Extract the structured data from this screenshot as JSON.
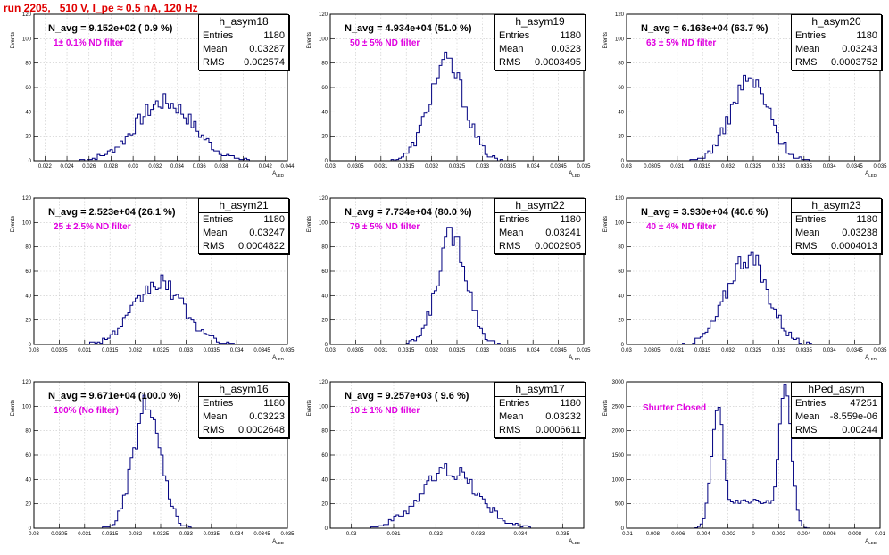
{
  "run_title": "run 2205,   510 V, I_pe ≈ 0.5 nA, 120 Hz",
  "chart_data": [
    {
      "type": "bar",
      "title": "h_asym18",
      "navg": "N_avg = 9.152e+02 ( 0.9 %)",
      "note": "1± 0.1% ND filter",
      "stats": {
        "Entries": "1180",
        "Mean": "0.03287",
        "RMS": "0.002574"
      },
      "xlabel": "A_LED",
      "ylabel": "Events",
      "xlim": [
        0.021,
        0.044
      ],
      "ylim": [
        0,
        120
      ],
      "xticks": [
        0.022,
        0.024,
        0.026,
        0.028,
        0.03,
        0.032,
        0.034,
        0.036,
        0.038,
        0.04,
        0.042,
        0.044
      ],
      "yticks": [
        0,
        20,
        40,
        60,
        80,
        100,
        120
      ],
      "peak": {
        "mean": 0.03287,
        "rms": 0.002574,
        "height": 48,
        "entries": 1180
      }
    },
    {
      "type": "bar",
      "title": "h_asym19",
      "navg": "N_avg = 4.934e+04 (51.0 %)",
      "note": "50 ± 5% ND filter",
      "stats": {
        "Entries": "1180",
        "Mean": "0.0323",
        "RMS": "0.0003495"
      },
      "xlabel": "A_LED",
      "ylabel": "Events",
      "xlim": [
        0.03,
        0.035
      ],
      "ylim": [
        0,
        120
      ],
      "xticks": [
        0.03,
        0.0305,
        0.031,
        0.0315,
        0.032,
        0.0325,
        0.033,
        0.0335,
        0.034,
        0.0345,
        0.035
      ],
      "yticks": [
        0,
        20,
        40,
        60,
        80,
        100,
        120
      ],
      "peak": {
        "mean": 0.0323,
        "rms": 0.0003495,
        "height": 80,
        "entries": 1180
      }
    },
    {
      "type": "bar",
      "title": "h_asym20",
      "navg": "N_avg = 6.163e+04 (63.7 %)",
      "note": "63 ± 5% ND filter",
      "stats": {
        "Entries": "1180",
        "Mean": "0.03243",
        "RMS": "0.0003752"
      },
      "xlabel": "A_LED",
      "ylabel": "Events",
      "xlim": [
        0.03,
        0.035
      ],
      "ylim": [
        0,
        120
      ],
      "xticks": [
        0.03,
        0.0305,
        0.031,
        0.0315,
        0.032,
        0.0325,
        0.033,
        0.0335,
        0.034,
        0.0345,
        0.035
      ],
      "yticks": [
        0,
        20,
        40,
        60,
        80,
        100,
        120
      ],
      "peak": {
        "mean": 0.03243,
        "rms": 0.0003752,
        "height": 66,
        "entries": 1180
      }
    },
    {
      "type": "bar",
      "title": "h_asym21",
      "navg": "N_avg = 2.523e+04 (26.1 %)",
      "note": "25 ± 2.5% ND filter",
      "stats": {
        "Entries": "1180",
        "Mean": "0.03247",
        "RMS": "0.0004822"
      },
      "xlabel": "A_LED",
      "ylabel": "Events",
      "xlim": [
        0.03,
        0.035
      ],
      "ylim": [
        0,
        120
      ],
      "xticks": [
        0.03,
        0.0305,
        0.031,
        0.0315,
        0.032,
        0.0325,
        0.033,
        0.0335,
        0.034,
        0.0345,
        0.035
      ],
      "yticks": [
        0,
        20,
        40,
        60,
        80,
        100,
        120
      ],
      "peak": {
        "mean": 0.03247,
        "rms": 0.0004822,
        "height": 50,
        "entries": 1180
      }
    },
    {
      "type": "bar",
      "title": "h_asym22",
      "navg": "N_avg = 7.734e+04 (80.0 %)",
      "note": "79 ± 5% ND filter",
      "stats": {
        "Entries": "1180",
        "Mean": "0.03241",
        "RMS": "0.0002905"
      },
      "xlabel": "A_LED",
      "ylabel": "Events",
      "xlim": [
        0.03,
        0.035
      ],
      "ylim": [
        0,
        120
      ],
      "xticks": [
        0.03,
        0.0305,
        0.031,
        0.0315,
        0.032,
        0.0325,
        0.033,
        0.0335,
        0.034,
        0.0345,
        0.035
      ],
      "yticks": [
        0,
        20,
        40,
        60,
        80,
        100,
        120
      ],
      "peak": {
        "mean": 0.03241,
        "rms": 0.0002905,
        "height": 90,
        "entries": 1180
      }
    },
    {
      "type": "bar",
      "title": "h_asym23",
      "navg": "N_avg = 3.930e+04 (40.6 %)",
      "note": "40 ± 4% ND filter",
      "stats": {
        "Entries": "1180",
        "Mean": "0.03238",
        "RMS": "0.0004013"
      },
      "xlabel": "A_LED",
      "ylabel": "Events",
      "xlim": [
        0.03,
        0.035
      ],
      "ylim": [
        0,
        120
      ],
      "xticks": [
        0.03,
        0.0305,
        0.031,
        0.0315,
        0.032,
        0.0325,
        0.033,
        0.0335,
        0.034,
        0.0345,
        0.035
      ],
      "yticks": [
        0,
        20,
        40,
        60,
        80,
        100,
        120
      ],
      "peak": {
        "mean": 0.03238,
        "rms": 0.0004013,
        "height": 72,
        "entries": 1180
      }
    },
    {
      "type": "bar",
      "title": "h_asym16",
      "navg": "N_avg = 9.671e+04 (100.0 %)",
      "note": "100% (No filter)",
      "stats": {
        "Entries": "1180",
        "Mean": "0.03223",
        "RMS": "0.0002648"
      },
      "xlabel": "A_LED",
      "ylabel": "Events",
      "xlim": [
        0.03,
        0.035
      ],
      "ylim": [
        0,
        120
      ],
      "xticks": [
        0.03,
        0.0305,
        0.031,
        0.0315,
        0.032,
        0.0325,
        0.033,
        0.0335,
        0.034,
        0.0345,
        0.035
      ],
      "yticks": [
        0,
        20,
        40,
        60,
        80,
        100,
        120
      ],
      "peak": {
        "mean": 0.03223,
        "rms": 0.0002648,
        "height": 100,
        "entries": 1180
      }
    },
    {
      "type": "bar",
      "title": "h_asym17",
      "navg": "N_avg = 9.257e+03 ( 9.6 %)",
      "note": "10 ± 1% ND filter",
      "stats": {
        "Entries": "1180",
        "Mean": "0.03232",
        "RMS": "0.0006611"
      },
      "xlabel": "A_LED",
      "ylabel": "Events",
      "xlim": [
        0.0295,
        0.0355
      ],
      "ylim": [
        0,
        120
      ],
      "xticks": [
        0.03,
        0.031,
        0.032,
        0.033,
        0.034,
        0.035
      ],
      "yticks": [
        0,
        20,
        40,
        60,
        80,
        100,
        120
      ],
      "peak": {
        "mean": 0.03232,
        "rms": 0.0006611,
        "height": 48,
        "entries": 1180
      }
    },
    {
      "type": "bar",
      "title": "hPed_asym",
      "navg": "",
      "note": "Shutter Closed",
      "stats": {
        "Entries": "47251",
        "Mean": "-8.559e-06",
        "RMS": "0.00244"
      },
      "xlabel": "A_LED",
      "ylabel": "Events",
      "xlim": [
        -0.01,
        0.01
      ],
      "ylim": [
        0,
        3000
      ],
      "xticks": [
        -0.01,
        -0.008,
        -0.006,
        -0.004,
        -0.002,
        0,
        0.002,
        0.004,
        0.006,
        0.008,
        0.01
      ],
      "yticks": [
        0,
        500,
        1000,
        1500,
        2000,
        2500,
        3000
      ],
      "bimodal": {
        "peak1": -0.0028,
        "peak1_height": 2450,
        "peak2": 0.0025,
        "peak2_height": 2900,
        "width": 0.0005,
        "floor": 550
      }
    }
  ]
}
